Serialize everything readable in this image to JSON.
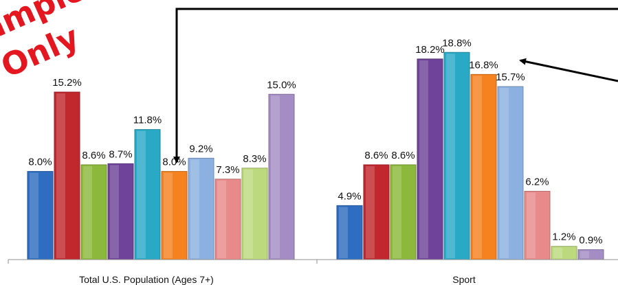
{
  "watermark": {
    "line1": "Sample",
    "line2": "Only",
    "color": "#e4161f"
  },
  "chart_data": {
    "type": "bar",
    "title": "",
    "xlabel": "",
    "ylabel": "",
    "ylim": [
      0,
      20
    ],
    "grid": false,
    "legend": "none",
    "groups": [
      {
        "category": "Total U.S. Population (Ages 7+)",
        "values": [
          8.0,
          15.2,
          8.6,
          8.7,
          11.8,
          8.0,
          9.2,
          7.3,
          8.3,
          15.0
        ],
        "labels": [
          "8.0%",
          "15.2%",
          "8.6%",
          "8.7%",
          "11.8%",
          "8.0%",
          "9.2%",
          "7.3%",
          "8.3%",
          "15.0%"
        ]
      },
      {
        "category": "Sport",
        "values": [
          4.9,
          8.6,
          8.6,
          18.2,
          18.8,
          16.8,
          15.7,
          6.2,
          1.2,
          0.9
        ],
        "labels": [
          "4.9%",
          "8.6%",
          "8.6%",
          "18.2%",
          "18.8%",
          "16.8%",
          "15.7%",
          "6.2%",
          "1.2%",
          "0.9%"
        ]
      }
    ],
    "bar_colors": [
      "#2e6dbf",
      "#c1282d",
      "#8cb93c",
      "#6e4399",
      "#2aa9c6",
      "#f5821f",
      "#8cb1e0",
      "#e98a8a",
      "#bcd97e",
      "#a48dc4"
    ]
  }
}
